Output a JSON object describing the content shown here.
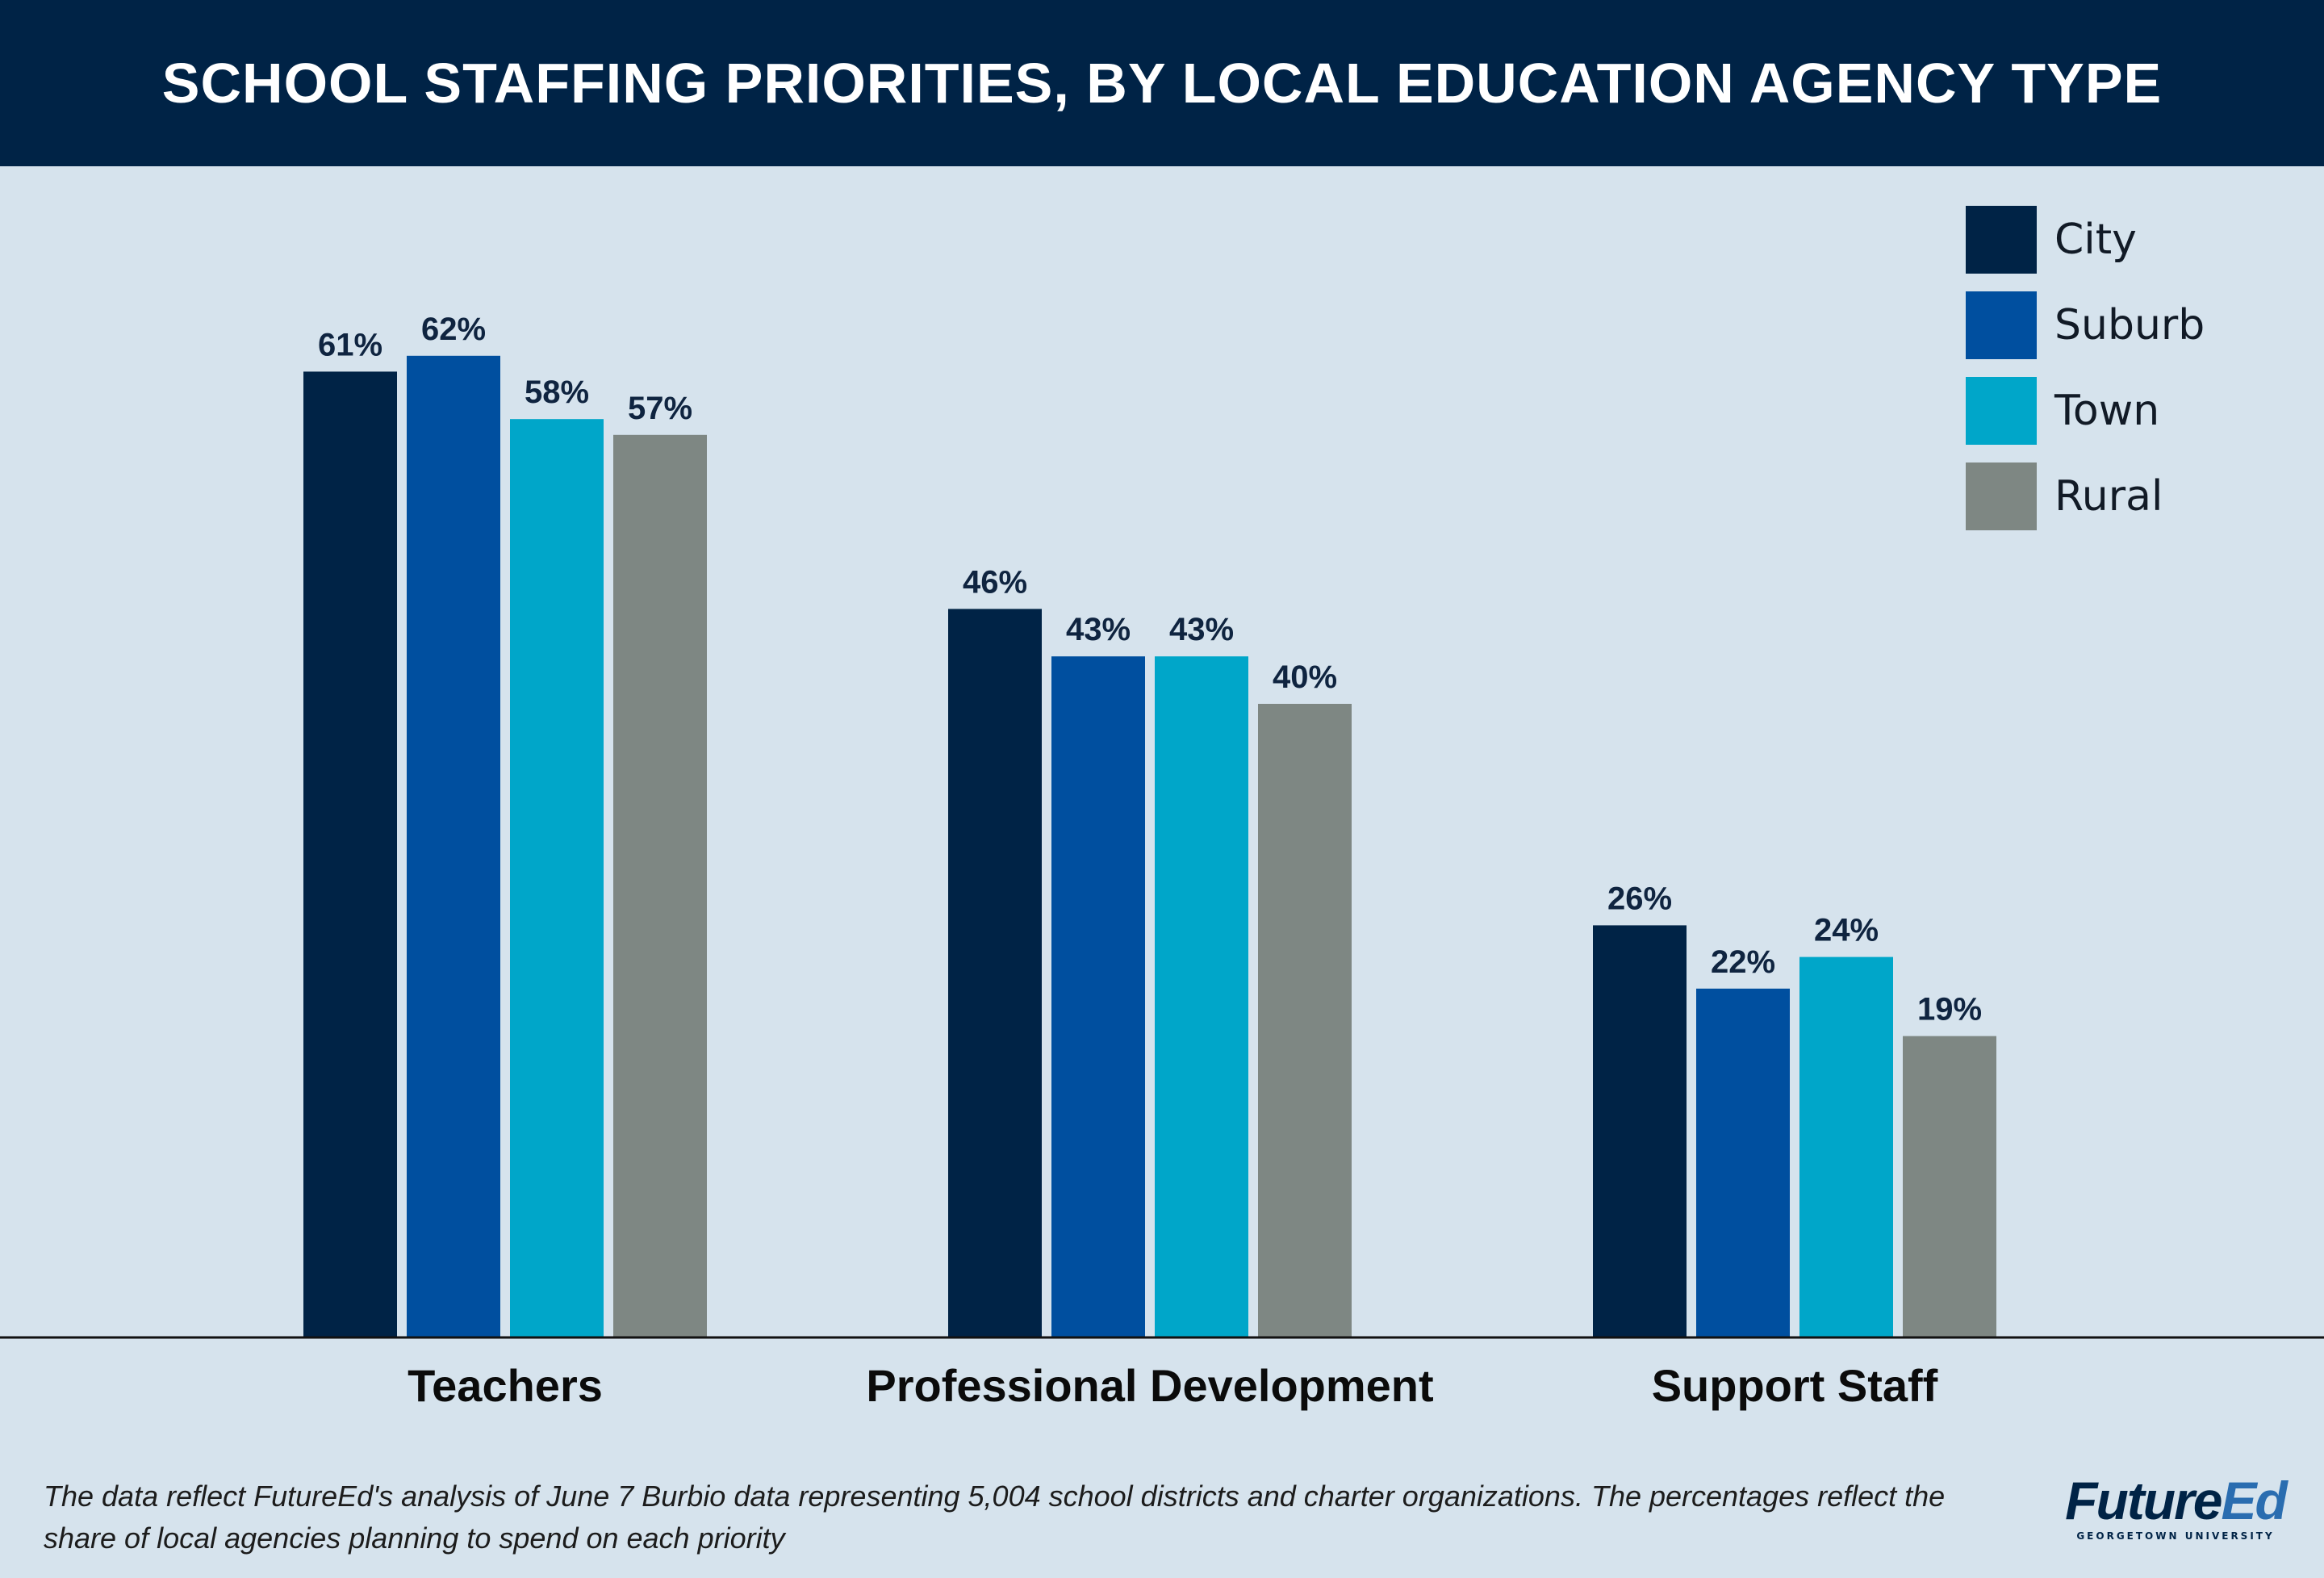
{
  "title": "SCHOOL STAFFING PRIORITIES, BY LOCAL EDUCATION AGENCY TYPE",
  "note": "The data reflect FutureEd's analysis of June 7 Burbio data representing 5,004 school districts and charter organizations. The percentages reflect the share of local agencies planning to spend on each priority",
  "logo": {
    "main": "Future",
    "accent": "Ed",
    "sub": "GEORGETOWN UNIVERSITY"
  },
  "colors": {
    "City": "#002346",
    "Suburb": "#004f9f",
    "Town": "#00a6c9",
    "Rural": "#7e8783"
  },
  "chart_data": {
    "type": "bar",
    "title": "SCHOOL STAFFING PRIORITIES, BY LOCAL EDUCATION AGENCY TYPE",
    "categories": [
      "Teachers",
      "Professional Development",
      "Support Staff"
    ],
    "series": [
      {
        "name": "City",
        "values": [
          61,
          46,
          26
        ]
      },
      {
        "name": "Suburb",
        "values": [
          62,
          43,
          22
        ]
      },
      {
        "name": "Town",
        "values": [
          58,
          43,
          24
        ]
      },
      {
        "name": "Rural",
        "values": [
          57,
          40,
          19
        ]
      }
    ],
    "value_suffix": "%",
    "ylim": [
      0,
      100
    ],
    "grid": false,
    "legend": "top-right"
  }
}
